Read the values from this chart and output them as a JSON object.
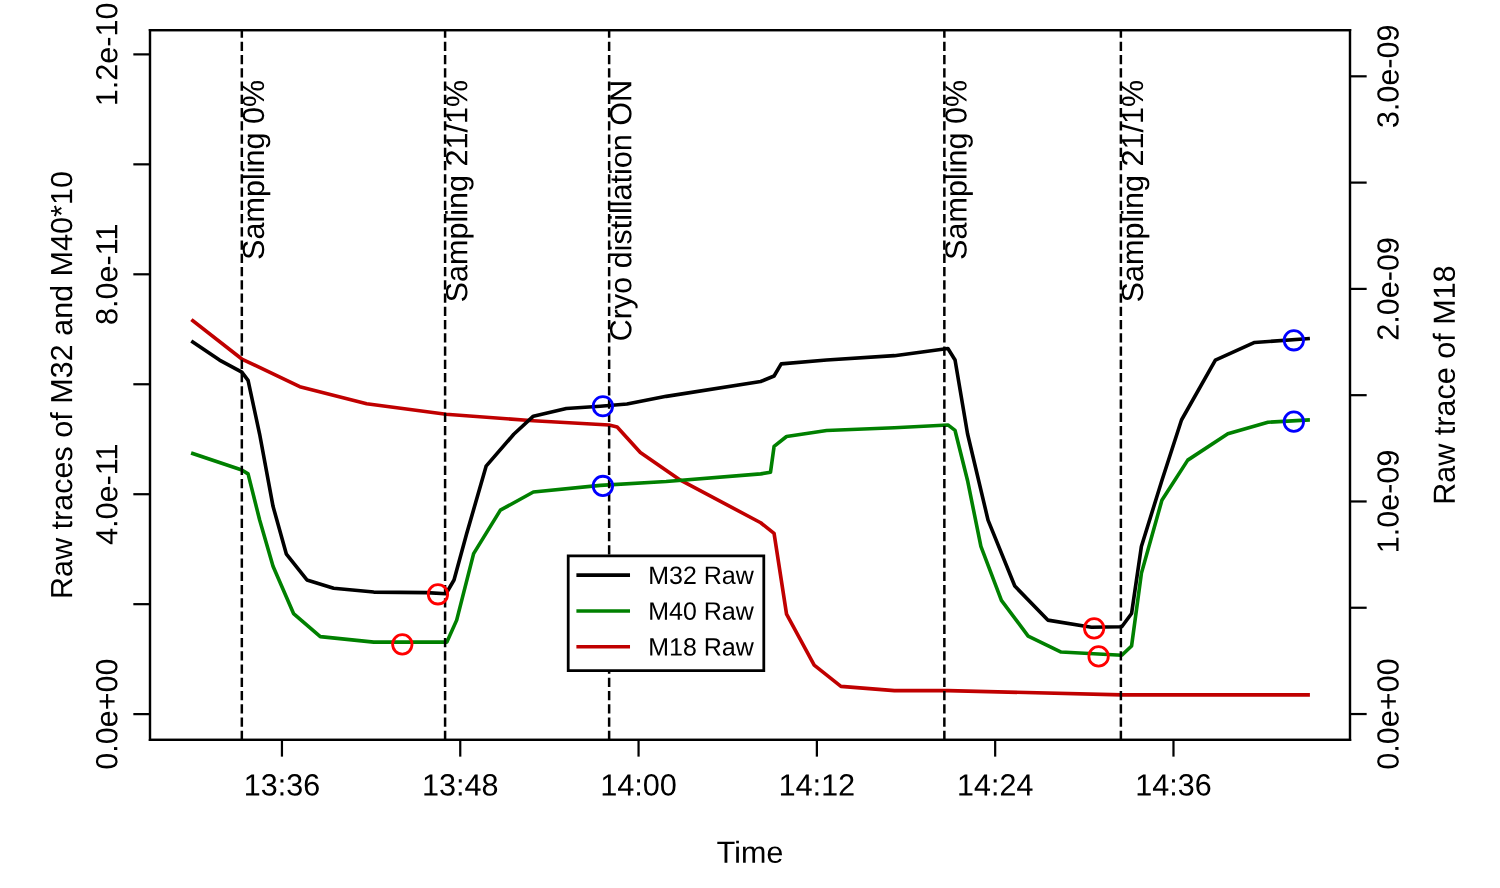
{
  "chart_data": {
    "type": "line",
    "xlabel": "Time",
    "ylabel": "Raw traces of M32 and M40*10",
    "y2label": "Raw trace of M18",
    "xlim": [
      13.452,
      14.798
    ],
    "xticks": [
      {
        "value": 13.6,
        "label": "13:36"
      },
      {
        "value": 13.8,
        "label": "13:48"
      },
      {
        "value": 14.0,
        "label": "14:00"
      },
      {
        "value": 14.2,
        "label": "14:12"
      },
      {
        "value": 14.4,
        "label": "14:24"
      },
      {
        "value": 14.6,
        "label": "14:36"
      }
    ],
    "ylim": [
      -4.7e-12,
      1.244e-10
    ],
    "yticks": [
      {
        "value": 0,
        "label": "0.0e+00"
      },
      {
        "value": 2e-11,
        "label": null
      },
      {
        "value": 4e-11,
        "label": "4.0e-11"
      },
      {
        "value": 6e-11,
        "label": null
      },
      {
        "value": 8e-11,
        "label": "8.0e-11"
      },
      {
        "value": 1e-10,
        "label": null
      },
      {
        "value": 1.2e-10,
        "label": "1.2e-10"
      }
    ],
    "y2lim": [
      -1.22e-10,
      3.217e-09
    ],
    "y2ticks": [
      {
        "value": 0,
        "label": "0.0e+00"
      },
      {
        "value": 5e-10,
        "label": null
      },
      {
        "value": 1e-09,
        "label": "1.0e-09"
      },
      {
        "value": 1.5e-09,
        "label": null
      },
      {
        "value": 2e-09,
        "label": "2.0e-09"
      },
      {
        "value": 2.5e-09,
        "label": null
      },
      {
        "value": 3e-09,
        "label": "3.0e-09"
      }
    ],
    "grid": false,
    "legend": "bottom",
    "line_style": "solid",
    "ref_lines": [
      {
        "axis": "x",
        "value": 13.555,
        "label": "Sampling 0%",
        "color": "#000000",
        "line_style": "dashed"
      },
      {
        "axis": "x",
        "value": 13.783,
        "label": "Sampling 21/1%",
        "color": "#000000",
        "line_style": "dashed"
      },
      {
        "axis": "x",
        "value": 13.967,
        "label": "Cryo distillation ON",
        "color": "#000000",
        "line_style": "dashed"
      },
      {
        "axis": "x",
        "value": 14.343,
        "label": "Sampling 0%",
        "color": "#000000",
        "line_style": "dashed"
      },
      {
        "axis": "x",
        "value": 14.541,
        "label": "Sampling 21/1%",
        "color": "#000000",
        "line_style": "dashed"
      }
    ],
    "series": [
      {
        "name": "M32 Raw",
        "color": "#000000",
        "x": [
          13.5,
          13.53,
          13.555,
          13.562,
          13.575,
          13.59,
          13.605,
          13.628,
          13.658,
          13.703,
          13.762,
          13.784,
          13.793,
          13.807,
          13.829,
          13.86,
          13.882,
          13.919,
          13.957,
          13.987,
          14.031,
          14.137,
          14.152,
          14.16,
          14.211,
          14.287,
          14.347,
          14.355,
          14.369,
          14.392,
          14.422,
          14.459,
          14.508,
          14.542,
          14.553,
          14.564,
          14.587,
          14.609,
          14.647,
          14.691,
          14.751
        ],
        "values": [
          6.77e-11,
          6.44e-11,
          6.22e-11,
          6.07e-11,
          5.09e-11,
          3.78e-11,
          2.91e-11,
          2.44e-11,
          2.29e-11,
          2.22e-11,
          2.21e-11,
          2.19e-11,
          2.44e-11,
          3.27e-11,
          4.51e-11,
          5.09e-11,
          5.42e-11,
          5.56e-11,
          5.6e-11,
          5.64e-11,
          5.78e-11,
          6.05e-11,
          6.15e-11,
          6.37e-11,
          6.44e-11,
          6.52e-11,
          6.65e-11,
          6.44e-11,
          5.1e-11,
          3.53e-11,
          2.33e-11,
          1.71e-11,
          1.58e-11,
          1.59e-11,
          1.83e-11,
          3.05e-11,
          4.25e-11,
          5.35e-11,
          6.44e-11,
          6.76e-11,
          6.83e-11
        ]
      },
      {
        "name": "M40 Raw",
        "color": "#008000",
        "x": [
          13.5,
          13.555,
          13.562,
          13.575,
          13.59,
          13.613,
          13.643,
          13.703,
          13.785,
          13.796,
          13.815,
          13.845,
          13.882,
          13.957,
          14.031,
          14.137,
          14.148,
          14.152,
          14.166,
          14.211,
          14.287,
          14.347,
          14.355,
          14.369,
          14.384,
          14.407,
          14.437,
          14.474,
          14.542,
          14.553,
          14.564,
          14.587,
          14.616,
          14.661,
          14.706,
          14.751
        ],
        "values": [
          4.74e-11,
          4.44e-11,
          4.37e-11,
          3.53e-11,
          2.69e-11,
          1.83e-11,
          1.41e-11,
          1.31e-11,
          1.31e-11,
          1.71e-11,
          2.92e-11,
          3.71e-11,
          4.04e-11,
          4.16e-11,
          4.23e-11,
          4.37e-11,
          4.4e-11,
          4.87e-11,
          5.05e-11,
          5.16e-11,
          5.21e-11,
          5.26e-11,
          5.16e-11,
          4.25e-11,
          3.05e-11,
          2.07e-11,
          1.42e-11,
          1.13e-11,
          1.07e-11,
          1.24e-11,
          2.56e-11,
          3.89e-11,
          4.62e-11,
          5.1e-11,
          5.31e-11,
          5.35e-11
        ]
      },
      {
        "name": "M18 Raw",
        "color": "#c00000",
        "axis": "y2",
        "x": [
          13.5,
          13.555,
          13.62,
          13.695,
          13.784,
          13.882,
          13.967,
          13.976,
          14.002,
          14.047,
          14.137,
          14.152,
          14.166,
          14.197,
          14.227,
          14.287,
          14.347,
          14.542,
          14.751
        ],
        "values": [
          1.85e-09,
          1.67e-09,
          1.54e-09,
          1.46e-09,
          1.41e-09,
          1.38e-09,
          1.36e-09,
          1.35e-09,
          1.23e-09,
          1.1e-09,
          9e-10,
          8.5e-10,
          4.7e-10,
          2.3e-10,
          1.3e-10,
          1.1e-10,
          1.1e-10,
          9e-11,
          9e-11
        ]
      },
      {
        "type": "scatter",
        "marker": "circle",
        "color": "#ff0000",
        "x": [
          13.775,
          13.735,
          14.511,
          14.516
        ],
        "values": [
          2.18e-11,
          1.27e-11,
          1.56e-11,
          1.05e-11
        ]
      },
      {
        "type": "scatter",
        "marker": "circle",
        "color": "#0000ff",
        "x": [
          13.96,
          13.96,
          14.735,
          14.735
        ],
        "values": [
          5.6e-11,
          4.15e-11,
          6.8e-11,
          5.32e-11
        ]
      }
    ]
  }
}
